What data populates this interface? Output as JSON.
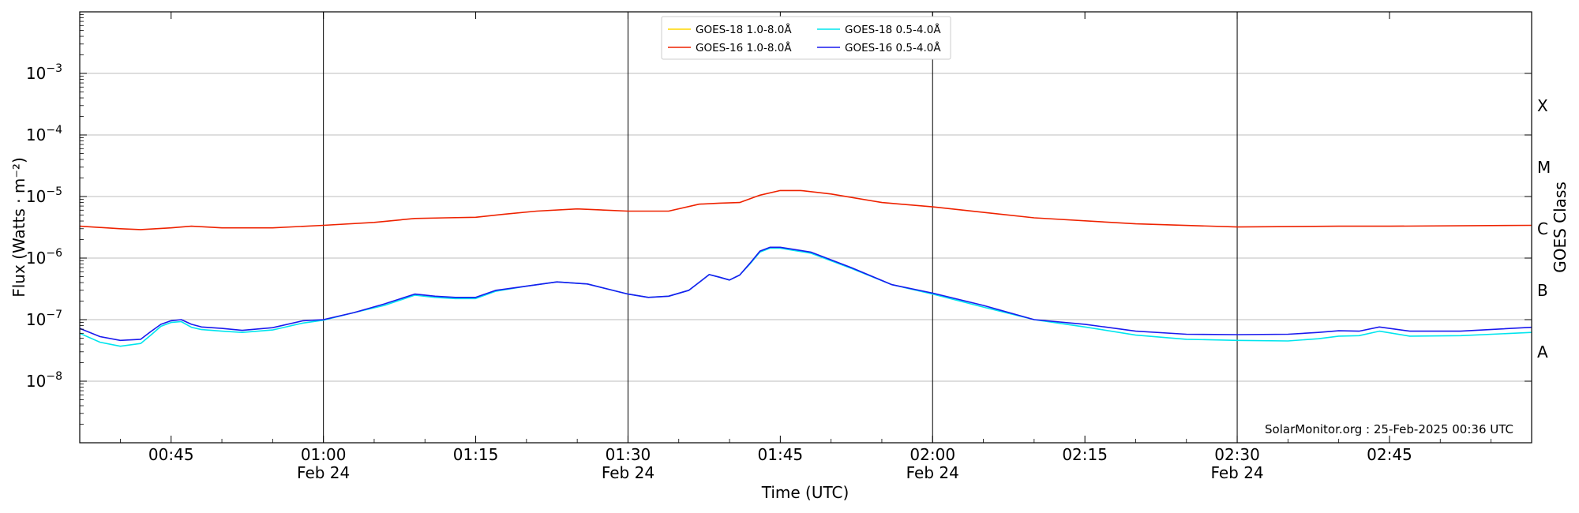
{
  "chart_data": {
    "type": "line",
    "xlabel": "Time (UTC)",
    "ylabel": "Flux (Watts · m⁻²)",
    "ylabel_right": "GOES Class",
    "y_scale": "log",
    "ylim": [
      1e-09,
      0.01
    ],
    "xlim": [
      "00:36",
      "02:59"
    ],
    "x_date": "Feb 24",
    "grid": "horizontal at decades",
    "legend_position": "top-center",
    "credit": "SolarMonitor.org : 25-Feb-2025 00:36 UTC",
    "y_ticks": [
      {
        "value": 1e-08,
        "mant": "10",
        "exp": "−8"
      },
      {
        "value": 1e-07,
        "mant": "10",
        "exp": "−7"
      },
      {
        "value": 1e-06,
        "mant": "10",
        "exp": "−6"
      },
      {
        "value": 1e-05,
        "mant": "10",
        "exp": "−5"
      },
      {
        "value": 0.0001,
        "mant": "10",
        "exp": "−4"
      },
      {
        "value": 0.001,
        "mant": "10",
        "exp": "−3"
      }
    ],
    "x_ticks": [
      {
        "time": "00:45",
        "label": "00:45",
        "sublabel": ""
      },
      {
        "time": "01:00",
        "label": "01:00",
        "sublabel": "Feb 24"
      },
      {
        "time": "01:15",
        "label": "01:15",
        "sublabel": ""
      },
      {
        "time": "01:30",
        "label": "01:30",
        "sublabel": "Feb 24"
      },
      {
        "time": "01:45",
        "label": "01:45",
        "sublabel": ""
      },
      {
        "time": "02:00",
        "label": "02:00",
        "sublabel": "Feb 24"
      },
      {
        "time": "02:15",
        "label": "02:15",
        "sublabel": ""
      },
      {
        "time": "02:30",
        "label": "02:30",
        "sublabel": "Feb 24"
      },
      {
        "time": "02:45",
        "label": "02:45",
        "sublabel": ""
      }
    ],
    "class_labels": [
      {
        "label": "A",
        "value": 3e-08
      },
      {
        "label": "B",
        "value": 3e-07
      },
      {
        "label": "C",
        "value": 3e-06
      },
      {
        "label": "M",
        "value": 3e-05
      },
      {
        "label": "X",
        "value": 0.0003
      }
    ],
    "series": [
      {
        "name": "GOES-18 1.0-8.0Å",
        "color": "#ffd700",
        "x": [],
        "y": []
      },
      {
        "name": "GOES-16 1.0-8.0Å",
        "color": "#ee2200",
        "x": [
          "00:36",
          "00:40",
          "00:42",
          "00:45",
          "00:47",
          "00:50",
          "00:55",
          "01:00",
          "01:05",
          "01:09",
          "01:12",
          "01:15",
          "01:18",
          "01:21",
          "01:25",
          "01:30",
          "01:34",
          "01:37",
          "01:39",
          "01:41",
          "01:43",
          "01:45",
          "01:47",
          "01:50",
          "01:55",
          "02:00",
          "02:10",
          "02:20",
          "02:30",
          "02:40",
          "02:45",
          "02:59"
        ],
        "y": [
          3.3e-06,
          3e-06,
          2.9e-06,
          3.1e-06,
          3.3e-06,
          3.1e-06,
          3.1e-06,
          3.4e-06,
          3.8e-06,
          4.4e-06,
          4.5e-06,
          4.6e-06,
          5.2e-06,
          5.8e-06,
          6.3e-06,
          5.8e-06,
          5.8e-06,
          7.5e-06,
          7.8e-06,
          8e-06,
          1.05e-05,
          1.25e-05,
          1.25e-05,
          1.1e-05,
          8e-06,
          6.8e-06,
          4.5e-06,
          3.6e-06,
          3.2e-06,
          3.3e-06,
          3.3e-06,
          3.4e-06
        ]
      },
      {
        "name": "GOES-18 0.5-4.0Å",
        "color": "#00e5ee",
        "x": [
          "00:36",
          "00:38",
          "00:40",
          "00:42",
          "00:43",
          "00:44",
          "00:45",
          "00:46",
          "00:47",
          "00:48",
          "00:50",
          "00:52",
          "00:55",
          "00:58",
          "01:00",
          "01:03",
          "01:06",
          "01:09",
          "01:11",
          "01:13",
          "01:15",
          "01:17",
          "01:20",
          "01:23",
          "01:26",
          "01:30",
          "01:32",
          "01:34",
          "01:36",
          "01:38",
          "01:39",
          "01:40",
          "01:41",
          "01:42",
          "01:43",
          "01:44",
          "01:45",
          "01:48",
          "01:52",
          "01:56",
          "02:00",
          "02:05",
          "02:10",
          "02:15",
          "02:20",
          "02:25",
          "02:30",
          "02:35",
          "02:38",
          "02:40",
          "02:42",
          "02:44",
          "02:47",
          "02:52",
          "02:59"
        ],
        "y": [
          6e-08,
          4.3e-08,
          3.7e-08,
          4.1e-08,
          5.6e-08,
          7.8e-08,
          9e-08,
          9.3e-08,
          7.5e-08,
          6.9e-08,
          6.5e-08,
          6.2e-08,
          6.8e-08,
          8.8e-08,
          9.8e-08,
          1.3e-07,
          1.7e-07,
          2.5e-07,
          2.3e-07,
          2.2e-07,
          2.2e-07,
          2.9e-07,
          3.5e-07,
          4.1e-07,
          3.8e-07,
          2.6e-07,
          2.3e-07,
          2.4e-07,
          3e-07,
          5.4e-07,
          4.9e-07,
          4.4e-07,
          5.3e-07,
          8e-07,
          1.25e-06,
          1.45e-06,
          1.45e-06,
          1.2e-06,
          6.8e-07,
          3.7e-07,
          2.6e-07,
          1.6e-07,
          1e-07,
          7.6e-08,
          5.6e-08,
          4.8e-08,
          4.6e-08,
          4.5e-08,
          4.9e-08,
          5.4e-08,
          5.5e-08,
          6.5e-08,
          5.4e-08,
          5.5e-08,
          6.2e-08
        ]
      },
      {
        "name": "GOES-16 0.5-4.0Å",
        "color": "#1a1aee",
        "x": [
          "00:36",
          "00:38",
          "00:40",
          "00:42",
          "00:43",
          "00:44",
          "00:45",
          "00:46",
          "00:47",
          "00:48",
          "00:50",
          "00:52",
          "00:55",
          "00:58",
          "01:00",
          "01:03",
          "01:06",
          "01:09",
          "01:11",
          "01:13",
          "01:15",
          "01:17",
          "01:20",
          "01:23",
          "01:26",
          "01:30",
          "01:32",
          "01:34",
          "01:36",
          "01:38",
          "01:39",
          "01:40",
          "01:41",
          "01:42",
          "01:43",
          "01:44",
          "01:45",
          "01:48",
          "01:52",
          "01:56",
          "02:00",
          "02:05",
          "02:10",
          "02:15",
          "02:20",
          "02:25",
          "02:30",
          "02:35",
          "02:38",
          "02:40",
          "02:42",
          "02:44",
          "02:47",
          "02:52",
          "02:59"
        ],
        "y": [
          7.2e-08,
          5.3e-08,
          4.6e-08,
          4.8e-08,
          6.4e-08,
          8.4e-08,
          9.6e-08,
          1e-07,
          8.4e-08,
          7.6e-08,
          7.2e-08,
          6.7e-08,
          7.4e-08,
          9.6e-08,
          1e-07,
          1.3e-07,
          1.8e-07,
          2.6e-07,
          2.4e-07,
          2.3e-07,
          2.3e-07,
          3e-07,
          3.5e-07,
          4.1e-07,
          3.8e-07,
          2.6e-07,
          2.3e-07,
          2.4e-07,
          3e-07,
          5.4e-07,
          4.9e-07,
          4.4e-07,
          5.3e-07,
          8.2e-07,
          1.3e-06,
          1.5e-06,
          1.5e-06,
          1.25e-06,
          7e-07,
          3.7e-07,
          2.7e-07,
          1.7e-07,
          1e-07,
          8.4e-08,
          6.5e-08,
          5.8e-08,
          5.7e-08,
          5.8e-08,
          6.2e-08,
          6.6e-08,
          6.5e-08,
          7.6e-08,
          6.5e-08,
          6.5e-08,
          7.5e-08
        ]
      }
    ]
  }
}
